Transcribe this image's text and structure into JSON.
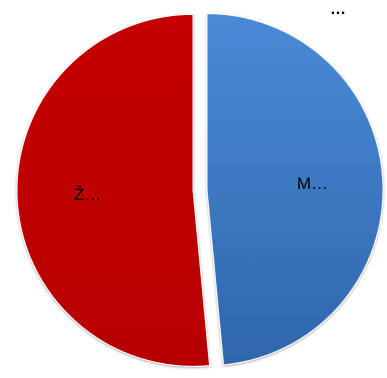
{
  "chart_data": {
    "type": "pie",
    "title_fragment": "…",
    "categories": [
      "M…",
      "Ž…"
    ],
    "values": [
      48.5,
      51.5
    ],
    "labels": [
      "M…",
      "Ž…"
    ],
    "colors": [
      "#3b78c4",
      "#c00000"
    ],
    "exploded": true
  }
}
